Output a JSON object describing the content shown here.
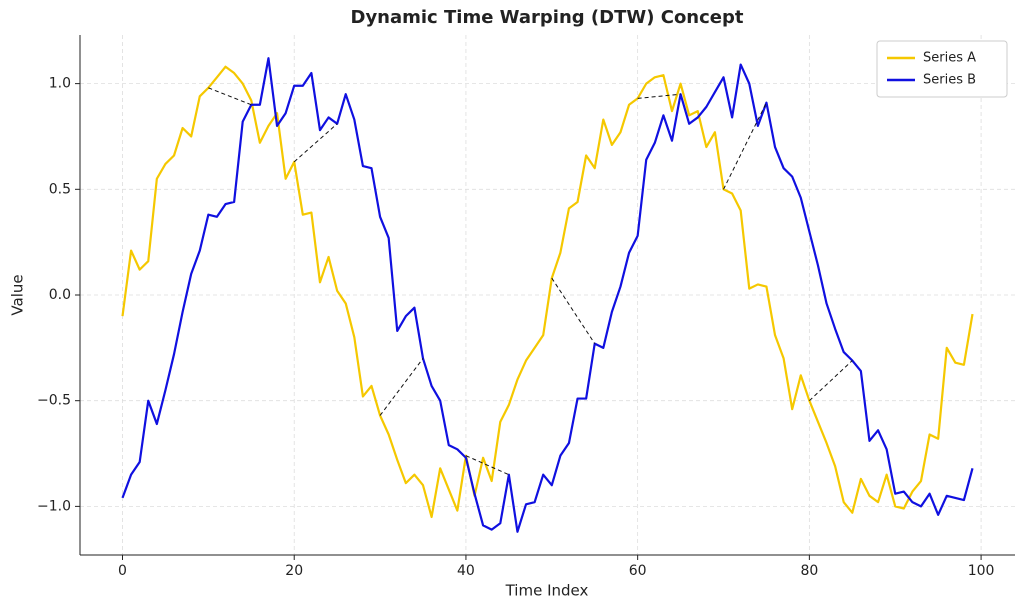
{
  "chart_data": {
    "type": "line",
    "title": "Dynamic Time Warping (DTW) Concept",
    "x_label": "Time Index",
    "y_label": "Value",
    "series": [
      {
        "name": "Series A",
        "color": "#f5c800",
        "values": [
          -0.1,
          0.21,
          0.12,
          0.16,
          0.55,
          0.62,
          0.66,
          0.79,
          0.75,
          0.94,
          0.98,
          1.03,
          1.08,
          1.05,
          1.0,
          0.92,
          0.72,
          0.8,
          0.86,
          0.55,
          0.63,
          0.38,
          0.39,
          0.06,
          0.18,
          0.02,
          -0.04,
          -0.2,
          -0.48,
          -0.43,
          -0.57,
          -0.66,
          -0.78,
          -0.89,
          -0.85,
          -0.9,
          -1.05,
          -0.82,
          -0.92,
          -1.02,
          -0.76,
          -0.95,
          -0.77,
          -0.88,
          -0.6,
          -0.52,
          -0.4,
          -0.31,
          -0.25,
          -0.19,
          0.08,
          0.2,
          0.41,
          0.44,
          0.66,
          0.6,
          0.83,
          0.71,
          0.77,
          0.9,
          0.93,
          1.0,
          1.03,
          1.04,
          0.87,
          1.0,
          0.85,
          0.87,
          0.7,
          0.77,
          0.5,
          0.48,
          0.4,
          0.03,
          0.05,
          0.04,
          -0.19,
          -0.3,
          -0.54,
          -0.38,
          -0.5,
          -0.6,
          -0.7,
          -0.81,
          -0.98,
          -1.03,
          -0.87,
          -0.95,
          -0.98,
          -0.85,
          -1.0,
          -1.01,
          -0.93,
          -0.88,
          -0.66,
          -0.68,
          -0.25,
          -0.32,
          -0.33,
          -0.09
        ]
      },
      {
        "name": "Series B",
        "color": "#1010e0",
        "values": [
          -0.96,
          -0.85,
          -0.79,
          -0.5,
          -0.61,
          -0.45,
          -0.28,
          -0.08,
          0.1,
          0.21,
          0.38,
          0.37,
          0.43,
          0.44,
          0.82,
          0.9,
          0.9,
          1.12,
          0.8,
          0.86,
          0.99,
          0.99,
          1.05,
          0.78,
          0.84,
          0.81,
          0.95,
          0.83,
          0.61,
          0.6,
          0.37,
          0.27,
          -0.17,
          -0.1,
          -0.06,
          -0.3,
          -0.43,
          -0.5,
          -0.71,
          -0.73,
          -0.77,
          -0.94,
          -1.09,
          -1.11,
          -1.08,
          -0.85,
          -1.12,
          -0.99,
          -0.98,
          -0.85,
          -0.9,
          -0.76,
          -0.7,
          -0.49,
          -0.49,
          -0.23,
          -0.25,
          -0.08,
          0.04,
          0.2,
          0.28,
          0.64,
          0.72,
          0.85,
          0.73,
          0.95,
          0.81,
          0.84,
          0.89,
          0.96,
          1.03,
          0.84,
          1.09,
          1.0,
          0.8,
          0.91,
          0.7,
          0.6,
          0.56,
          0.46,
          0.3,
          0.14,
          -0.04,
          -0.16,
          -0.27,
          -0.31,
          -0.36,
          -0.69,
          -0.64,
          -0.73,
          -0.94,
          -0.93,
          -0.98,
          -1.0,
          -0.94,
          -1.04,
          -0.95,
          -0.96,
          -0.97,
          -0.82
        ]
      }
    ],
    "alignments": [
      [
        10,
        15
      ],
      [
        20,
        25
      ],
      [
        30,
        35
      ],
      [
        40,
        45
      ],
      [
        50,
        55
      ],
      [
        60,
        65
      ],
      [
        70,
        75
      ],
      [
        80,
        85
      ]
    ],
    "xlim": [
      -4.95,
      103.95
    ],
    "xticks": [
      0,
      20,
      40,
      60,
      80,
      100
    ],
    "ylim": [
      -1.23,
      1.23
    ],
    "yticks": [
      {
        "value": -1.0,
        "label": "−1.0"
      },
      {
        "value": -0.5,
        "label": "−0.5"
      },
      {
        "value": 0,
        "label": "0.0"
      },
      {
        "value": 0.5,
        "label": "0.5"
      },
      {
        "value": 1.0,
        "label": "1.0"
      }
    ],
    "grid": true,
    "legend": "upper right"
  }
}
